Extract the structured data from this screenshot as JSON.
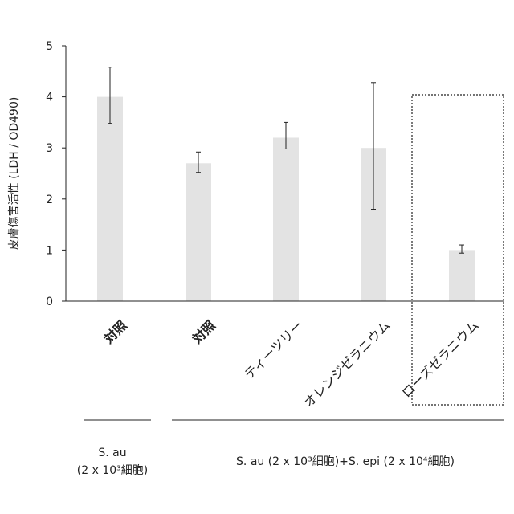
{
  "chart_data": {
    "type": "bar",
    "ylabel": "皮膚傷害活性 (LDH / OD490)",
    "ylim": [
      0,
      5
    ],
    "yticks": [
      0,
      1,
      2,
      3,
      4,
      5
    ],
    "categories": [
      "対照",
      "対照",
      "ティーツリー",
      "オレンジゼラニウム",
      "ローズゼラニウム"
    ],
    "values": [
      4.0,
      2.7,
      3.2,
      3.0,
      1.0
    ],
    "error_bars": [
      {
        "low": 3.48,
        "high": 4.58
      },
      {
        "low": 2.52,
        "high": 2.92
      },
      {
        "low": 2.98,
        "high": 3.5
      },
      {
        "low": 1.8,
        "high": 4.28
      },
      {
        "low": 0.94,
        "high": 1.1
      }
    ],
    "highlighted_category": "ローズゼラニウム",
    "grid": false,
    "bar_color": "#e3e3e3",
    "groups": [
      {
        "label": "S. au",
        "sublabel": "(2 x 10³細胞)",
        "categories": [
          "対照"
        ]
      },
      {
        "label": "S. au (2 x 10³細胞)+S. epi (2 x 10⁴細胞)",
        "sublabel": "",
        "categories": [
          "対照",
          "ティーツリー",
          "オレンジゼラニウム",
          "ローズゼラニウム"
        ]
      }
    ]
  }
}
